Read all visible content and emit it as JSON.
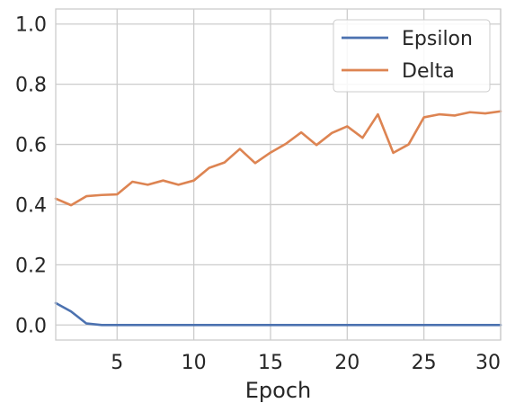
{
  "chart_data": {
    "type": "line",
    "xlabel": "Epoch",
    "ylabel": "",
    "xlim": [
      1,
      30
    ],
    "ylim": [
      -0.05,
      1.05
    ],
    "x_ticks": [
      5,
      10,
      15,
      20,
      25,
      30
    ],
    "y_ticks": [
      0.0,
      0.2,
      0.4,
      0.6,
      0.8,
      1.0
    ],
    "x_tick_labels": [
      "5",
      "10",
      "15",
      "20",
      "25",
      "30"
    ],
    "y_tick_labels": [
      "0.0",
      "0.2",
      "0.4",
      "0.6",
      "0.8",
      "1.0"
    ],
    "grid": true,
    "legend_position": "top-right",
    "x": [
      1,
      2,
      3,
      4,
      5,
      6,
      7,
      8,
      9,
      10,
      11,
      12,
      13,
      14,
      15,
      16,
      17,
      18,
      19,
      20,
      21,
      22,
      23,
      24,
      25,
      26,
      27,
      28,
      29,
      30
    ],
    "series": [
      {
        "name": "Epsilon",
        "color": "#4c72b0",
        "values": [
          0.073,
          0.045,
          0.005,
          0.0,
          0.0,
          0.0,
          0.0,
          0.0,
          0.0,
          0.0,
          0.0,
          0.0,
          0.0,
          0.0,
          0.0,
          0.0,
          0.0,
          0.0,
          0.0,
          0.0,
          0.0,
          0.0,
          0.0,
          0.0,
          0.0,
          0.0,
          0.0,
          0.0,
          0.0,
          0.0
        ]
      },
      {
        "name": "Delta",
        "color": "#dd8452",
        "values": [
          0.42,
          0.398,
          0.428,
          0.432,
          0.434,
          0.476,
          0.466,
          0.48,
          0.466,
          0.48,
          0.522,
          0.54,
          0.585,
          0.538,
          0.573,
          0.602,
          0.64,
          0.598,
          0.638,
          0.66,
          0.622,
          0.7,
          0.572,
          0.6,
          0.69,
          0.7,
          0.696,
          0.707,
          0.703,
          0.71
        ]
      }
    ]
  }
}
